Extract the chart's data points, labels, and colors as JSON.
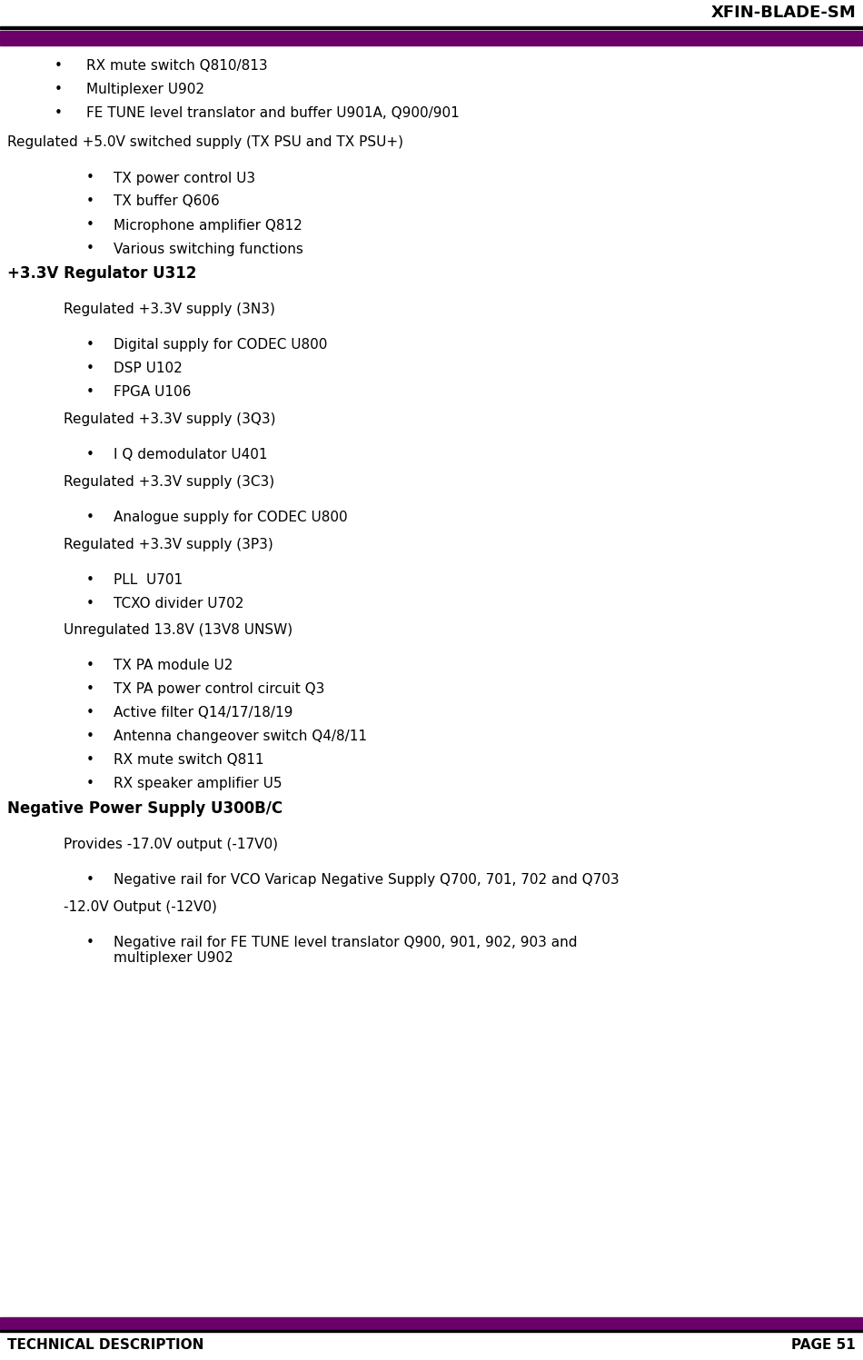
{
  "header_title": "XFIN-BLADE-SM",
  "footer_left": "TECHNICAL DESCRIPTION",
  "footer_right": "PAGE 51",
  "header_bar_color": "#6B0069",
  "footer_bar_color": "#6B0069",
  "bg_color": "#ffffff",
  "text_color": "#000000",
  "content": [
    {
      "type": "bullet",
      "indent": 1,
      "text": "RX mute switch Q810/813"
    },
    {
      "type": "bullet",
      "indent": 1,
      "text": "Multiplexer U902"
    },
    {
      "type": "bullet",
      "indent": 1,
      "text": "FE TUNE level translator and buffer U901A, Q900/901"
    },
    {
      "type": "gap",
      "size": 0.5
    },
    {
      "type": "subheading",
      "indent": 0,
      "text": "Regulated +5.0V switched supply (TX PSU and TX PSU+)"
    },
    {
      "type": "gap",
      "size": 0.4
    },
    {
      "type": "bullet",
      "indent": 2,
      "text": "TX power control U3"
    },
    {
      "type": "bullet",
      "indent": 2,
      "text": "TX buffer Q606"
    },
    {
      "type": "bullet",
      "indent": 2,
      "text": "Microphone amplifier Q812"
    },
    {
      "type": "bullet",
      "indent": 2,
      "text": "Various switching functions"
    },
    {
      "type": "heading",
      "indent": 0,
      "text": "+3.3V Regulator U312"
    },
    {
      "type": "gap",
      "size": 0.3
    },
    {
      "type": "subheading",
      "indent": 1,
      "text": "Regulated +3.3V supply (3N3)"
    },
    {
      "type": "gap",
      "size": 0.4
    },
    {
      "type": "bullet",
      "indent": 2,
      "text": "Digital supply for CODEC U800"
    },
    {
      "type": "bullet",
      "indent": 2,
      "text": "DSP U102"
    },
    {
      "type": "bullet",
      "indent": 2,
      "text": "FPGA U106"
    },
    {
      "type": "gap",
      "size": 0.3
    },
    {
      "type": "subheading",
      "indent": 1,
      "text": "Regulated +3.3V supply (3Q3)"
    },
    {
      "type": "gap",
      "size": 0.4
    },
    {
      "type": "bullet",
      "indent": 2,
      "text": "I Q demodulator U401"
    },
    {
      "type": "gap",
      "size": 0.3
    },
    {
      "type": "subheading",
      "indent": 1,
      "text": "Regulated +3.3V supply (3C3)"
    },
    {
      "type": "gap",
      "size": 0.4
    },
    {
      "type": "bullet",
      "indent": 2,
      "text": "Analogue supply for CODEC U800"
    },
    {
      "type": "gap",
      "size": 0.3
    },
    {
      "type": "subheading",
      "indent": 1,
      "text": "Regulated +3.3V supply (3P3)"
    },
    {
      "type": "gap",
      "size": 0.4
    },
    {
      "type": "bullet",
      "indent": 2,
      "text": "PLL  U701"
    },
    {
      "type": "bullet",
      "indent": 2,
      "text": "TCXO divider U702"
    },
    {
      "type": "gap",
      "size": 0.3
    },
    {
      "type": "subheading",
      "indent": 1,
      "text": "Unregulated 13.8V (13V8 UNSW)"
    },
    {
      "type": "gap",
      "size": 0.4
    },
    {
      "type": "bullet",
      "indent": 2,
      "text": "TX PA module U2"
    },
    {
      "type": "bullet",
      "indent": 2,
      "text": "TX PA power control circuit Q3"
    },
    {
      "type": "bullet",
      "indent": 2,
      "text": "Active filter Q14/17/18/19"
    },
    {
      "type": "bullet",
      "indent": 2,
      "text": "Antenna changeover switch Q4/8/11"
    },
    {
      "type": "bullet",
      "indent": 2,
      "text": "RX mute switch Q811"
    },
    {
      "type": "bullet",
      "indent": 2,
      "text": "RX speaker amplifier U5"
    },
    {
      "type": "heading",
      "indent": 0,
      "text": "Negative Power Supply U300B/C"
    },
    {
      "type": "gap",
      "size": 0.3
    },
    {
      "type": "subheading",
      "indent": 1,
      "text": "Provides -17.0V output (-17V0)"
    },
    {
      "type": "gap",
      "size": 0.4
    },
    {
      "type": "bullet",
      "indent": 2,
      "text": "Negative rail for VCO Varicap Negative Supply Q700, 701, 702 and Q703"
    },
    {
      "type": "gap",
      "size": 0.3
    },
    {
      "type": "subheading",
      "indent": 1,
      "text": "-12.0V Output (-12V0)"
    },
    {
      "type": "gap",
      "size": 0.4
    },
    {
      "type": "bullet_wrap",
      "indent": 2,
      "text": "Negative rail for FE TUNE level translator Q900, 901, 902, 903 and\nmultiplexer U902"
    }
  ]
}
